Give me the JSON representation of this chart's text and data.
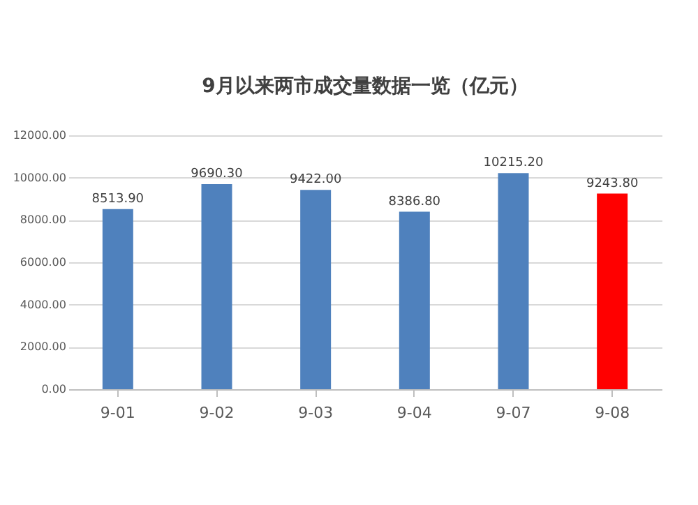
{
  "chart_data": {
    "type": "bar",
    "title": "9月以来两市成交量数据一览（亿元）",
    "categories": [
      "9-01",
      "9-02",
      "9-03",
      "9-04",
      "9-07",
      "9-08"
    ],
    "values": [
      8513.9,
      9690.3,
      9422.0,
      8386.8,
      10215.2,
      9243.8
    ],
    "colors": [
      "#4f81bd",
      "#4f81bd",
      "#4f81bd",
      "#4f81bd",
      "#4f81bd",
      "#ff0000"
    ],
    "value_labels": [
      "8513.90",
      "9690.30",
      "9422.00",
      "8386.80",
      "10215.20",
      "9243.80"
    ],
    "ylim": [
      0,
      12000
    ],
    "yticks": [
      {
        "value": 0,
        "label": "0.00"
      },
      {
        "value": 2000,
        "label": "2000.00"
      },
      {
        "value": 4000,
        "label": "4000.00"
      },
      {
        "value": 6000,
        "label": "6000.00"
      },
      {
        "value": 8000,
        "label": "8000.00"
      },
      {
        "value": 10000,
        "label": "10000.00"
      },
      {
        "value": 12000,
        "label": "12000.00"
      }
    ],
    "grid": "y"
  }
}
